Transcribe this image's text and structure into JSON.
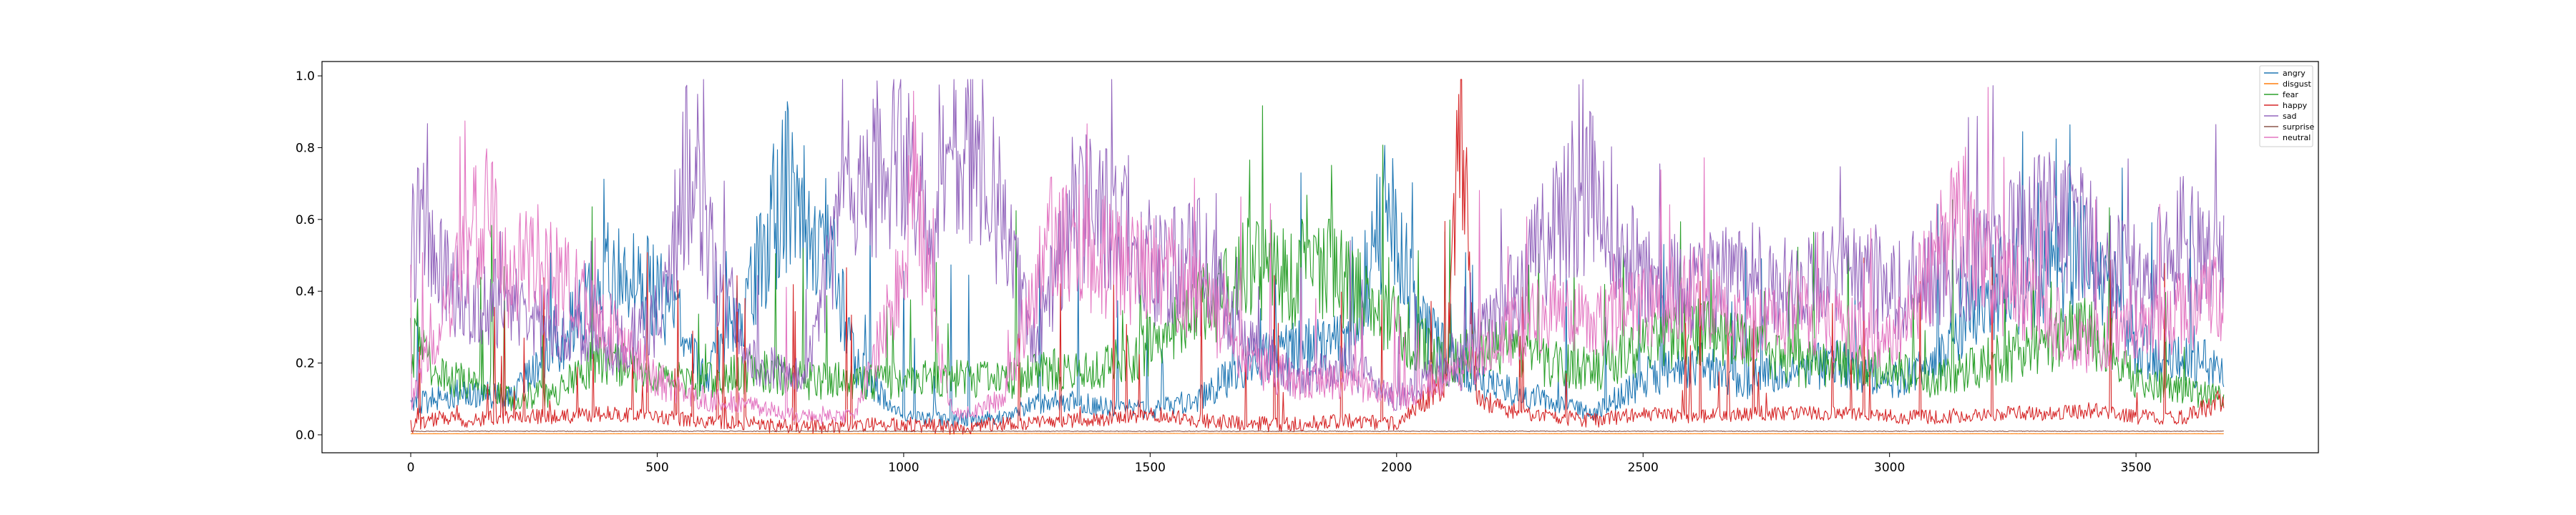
{
  "chart_data": {
    "type": "line",
    "title": "",
    "xlabel": "",
    "ylabel": "",
    "xlim": [
      -180,
      3870
    ],
    "ylim": [
      -0.05,
      1.04
    ],
    "x_ticks": [
      0,
      500,
      1000,
      1500,
      2000,
      2500,
      3000,
      3500
    ],
    "x_tick_labels": [
      "0",
      "500",
      "1000",
      "1500",
      "2000",
      "2500",
      "3000",
      "3500"
    ],
    "y_ticks": [
      0.0,
      0.2,
      0.4,
      0.6,
      0.8,
      1.0
    ],
    "y_tick_labels": [
      "0.0",
      "0.2",
      "0.4",
      "0.6",
      "0.8",
      "1.0"
    ],
    "grid": false,
    "legend_position": "top-right",
    "n_points": 3680,
    "series": [
      {
        "name": "angry",
        "color": "#1f77b4",
        "points": [
          [
            0,
            0.08
          ],
          [
            100,
            0.12
          ],
          [
            200,
            0.1
          ],
          [
            300,
            0.25
          ],
          [
            400,
            0.45
          ],
          [
            500,
            0.4
          ],
          [
            550,
            0.3
          ],
          [
            600,
            0.15
          ],
          [
            700,
            0.45
          ],
          [
            760,
            0.7
          ],
          [
            800,
            0.6
          ],
          [
            850,
            0.55
          ],
          [
            900,
            0.2
          ],
          [
            1000,
            0.05
          ],
          [
            1100,
            0.04
          ],
          [
            1200,
            0.05
          ],
          [
            1300,
            0.1
          ],
          [
            1400,
            0.08
          ],
          [
            1500,
            0.07
          ],
          [
            1600,
            0.1
          ],
          [
            1700,
            0.2
          ],
          [
            1800,
            0.25
          ],
          [
            1900,
            0.25
          ],
          [
            1980,
            0.65
          ],
          [
            2050,
            0.3
          ],
          [
            2150,
            0.15
          ],
          [
            2300,
            0.1
          ],
          [
            2400,
            0.06
          ],
          [
            2500,
            0.15
          ],
          [
            2600,
            0.2
          ],
          [
            2700,
            0.15
          ],
          [
            2800,
            0.18
          ],
          [
            2900,
            0.2
          ],
          [
            3000,
            0.15
          ],
          [
            3100,
            0.2
          ],
          [
            3200,
            0.4
          ],
          [
            3300,
            0.45
          ],
          [
            3400,
            0.5
          ],
          [
            3500,
            0.25
          ],
          [
            3600,
            0.2
          ],
          [
            3680,
            0.2
          ]
        ]
      },
      {
        "name": "disgust",
        "color": "#ff7f0e",
        "points": [
          [
            0,
            0.003
          ],
          [
            500,
            0.003
          ],
          [
            1000,
            0.003
          ],
          [
            1500,
            0.004
          ],
          [
            2000,
            0.003
          ],
          [
            2500,
            0.003
          ],
          [
            3000,
            0.003
          ],
          [
            3500,
            0.003
          ],
          [
            3680,
            0.003
          ]
        ]
      },
      {
        "name": "fear",
        "color": "#2ca02c",
        "points": [
          [
            0,
            0.25
          ],
          [
            100,
            0.15
          ],
          [
            200,
            0.1
          ],
          [
            300,
            0.12
          ],
          [
            380,
            0.22
          ],
          [
            500,
            0.15
          ],
          [
            600,
            0.15
          ],
          [
            700,
            0.18
          ],
          [
            800,
            0.15
          ],
          [
            900,
            0.15
          ],
          [
            1000,
            0.15
          ],
          [
            1100,
            0.16
          ],
          [
            1200,
            0.15
          ],
          [
            1300,
            0.18
          ],
          [
            1400,
            0.18
          ],
          [
            1500,
            0.25
          ],
          [
            1600,
            0.35
          ],
          [
            1700,
            0.45
          ],
          [
            1800,
            0.45
          ],
          [
            1900,
            0.45
          ],
          [
            2000,
            0.3
          ],
          [
            2100,
            0.2
          ],
          [
            2200,
            0.25
          ],
          [
            2300,
            0.2
          ],
          [
            2400,
            0.18
          ],
          [
            2500,
            0.25
          ],
          [
            2600,
            0.3
          ],
          [
            2700,
            0.25
          ],
          [
            2800,
            0.2
          ],
          [
            2900,
            0.2
          ],
          [
            3000,
            0.18
          ],
          [
            3100,
            0.15
          ],
          [
            3200,
            0.2
          ],
          [
            3300,
            0.25
          ],
          [
            3400,
            0.3
          ],
          [
            3500,
            0.15
          ],
          [
            3600,
            0.12
          ],
          [
            3680,
            0.1
          ]
        ]
      },
      {
        "name": "happy",
        "color": "#d62728",
        "points": [
          [
            0,
            0.02
          ],
          [
            60,
            0.05
          ],
          [
            100,
            0.04
          ],
          [
            200,
            0.05
          ],
          [
            300,
            0.05
          ],
          [
            400,
            0.06
          ],
          [
            500,
            0.05
          ],
          [
            600,
            0.04
          ],
          [
            700,
            0.03
          ],
          [
            800,
            0.02
          ],
          [
            900,
            0.03
          ],
          [
            1000,
            0.03
          ],
          [
            1100,
            0.02
          ],
          [
            1200,
            0.03
          ],
          [
            1300,
            0.04
          ],
          [
            1400,
            0.04
          ],
          [
            1500,
            0.06
          ],
          [
            1600,
            0.04
          ],
          [
            1700,
            0.03
          ],
          [
            1800,
            0.03
          ],
          [
            1900,
            0.04
          ],
          [
            2000,
            0.03
          ],
          [
            2100,
            0.15
          ],
          [
            2130,
            0.95
          ],
          [
            2160,
            0.1
          ],
          [
            2250,
            0.06
          ],
          [
            2400,
            0.04
          ],
          [
            2500,
            0.06
          ],
          [
            2600,
            0.05
          ],
          [
            2700,
            0.06
          ],
          [
            2800,
            0.06
          ],
          [
            2900,
            0.06
          ],
          [
            3000,
            0.05
          ],
          [
            3100,
            0.05
          ],
          [
            3200,
            0.06
          ],
          [
            3300,
            0.06
          ],
          [
            3400,
            0.07
          ],
          [
            3500,
            0.05
          ],
          [
            3600,
            0.05
          ],
          [
            3680,
            0.1
          ]
        ]
      },
      {
        "name": "sad",
        "color": "#9467bd",
        "points": [
          [
            0,
            0.55
          ],
          [
            30,
            0.6
          ],
          [
            60,
            0.45
          ],
          [
            100,
            0.4
          ],
          [
            200,
            0.35
          ],
          [
            300,
            0.3
          ],
          [
            400,
            0.25
          ],
          [
            500,
            0.3
          ],
          [
            560,
            0.75
          ],
          [
            620,
            0.45
          ],
          [
            700,
            0.2
          ],
          [
            800,
            0.15
          ],
          [
            880,
            0.65
          ],
          [
            950,
            0.75
          ],
          [
            1000,
            0.78
          ],
          [
            1050,
            0.5
          ],
          [
            1100,
            0.8
          ],
          [
            1150,
            0.78
          ],
          [
            1200,
            0.6
          ],
          [
            1260,
            0.25
          ],
          [
            1350,
            0.65
          ],
          [
            1450,
            0.6
          ],
          [
            1500,
            0.45
          ],
          [
            1600,
            0.5
          ],
          [
            1700,
            0.25
          ],
          [
            1800,
            0.15
          ],
          [
            1900,
            0.2
          ],
          [
            2000,
            0.1
          ],
          [
            2100,
            0.2
          ],
          [
            2200,
            0.3
          ],
          [
            2300,
            0.55
          ],
          [
            2400,
            0.7
          ],
          [
            2500,
            0.45
          ],
          [
            2600,
            0.4
          ],
          [
            2700,
            0.45
          ],
          [
            2800,
            0.4
          ],
          [
            2900,
            0.45
          ],
          [
            3000,
            0.4
          ],
          [
            3100,
            0.45
          ],
          [
            3200,
            0.5
          ],
          [
            3300,
            0.6
          ],
          [
            3400,
            0.55
          ],
          [
            3500,
            0.4
          ],
          [
            3600,
            0.55
          ],
          [
            3680,
            0.45
          ]
        ]
      },
      {
        "name": "surprise",
        "color": "#8c564b",
        "points": [
          [
            0,
            0.01
          ],
          [
            500,
            0.01
          ],
          [
            1000,
            0.01
          ],
          [
            1500,
            0.01
          ],
          [
            2000,
            0.01
          ],
          [
            2500,
            0.01
          ],
          [
            3000,
            0.01
          ],
          [
            3500,
            0.01
          ],
          [
            3680,
            0.01
          ]
        ]
      },
      {
        "name": "neutral",
        "color": "#e377c2",
        "points": [
          [
            0,
            0.1
          ],
          [
            100,
            0.45
          ],
          [
            150,
            0.65
          ],
          [
            200,
            0.4
          ],
          [
            250,
            0.5
          ],
          [
            300,
            0.45
          ],
          [
            400,
            0.3
          ],
          [
            500,
            0.15
          ],
          [
            600,
            0.1
          ],
          [
            700,
            0.08
          ],
          [
            800,
            0.05
          ],
          [
            900,
            0.05
          ],
          [
            1000,
            0.45
          ],
          [
            1020,
            0.75
          ],
          [
            1060,
            0.3
          ],
          [
            1100,
            0.05
          ],
          [
            1200,
            0.1
          ],
          [
            1300,
            0.55
          ],
          [
            1400,
            0.5
          ],
          [
            1500,
            0.45
          ],
          [
            1600,
            0.4
          ],
          [
            1700,
            0.2
          ],
          [
            1800,
            0.15
          ],
          [
            1900,
            0.15
          ],
          [
            2000,
            0.1
          ],
          [
            2100,
            0.15
          ],
          [
            2200,
            0.25
          ],
          [
            2300,
            0.35
          ],
          [
            2400,
            0.3
          ],
          [
            2500,
            0.35
          ],
          [
            2600,
            0.4
          ],
          [
            2700,
            0.3
          ],
          [
            2800,
            0.35
          ],
          [
            2900,
            0.3
          ],
          [
            3000,
            0.25
          ],
          [
            3100,
            0.5
          ],
          [
            3150,
            0.62
          ],
          [
            3200,
            0.45
          ],
          [
            3300,
            0.35
          ],
          [
            3400,
            0.25
          ],
          [
            3500,
            0.3
          ],
          [
            3600,
            0.35
          ],
          [
            3680,
            0.4
          ]
        ]
      }
    ]
  }
}
